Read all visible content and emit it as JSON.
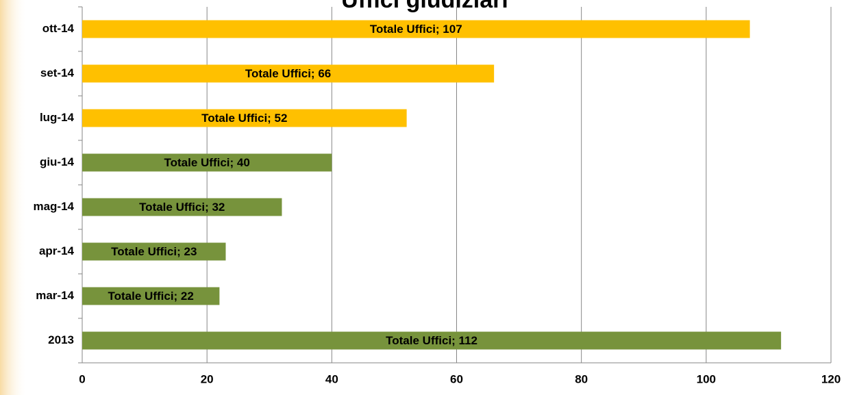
{
  "chart_data": {
    "type": "bar",
    "orientation": "horizontal",
    "title": "Uffici giudiziari",
    "categories": [
      "ott-14",
      "set-14",
      "lug-14",
      "giu-14",
      "mag-14",
      "apr-14",
      "mar-14",
      "2013"
    ],
    "values": [
      107,
      66,
      52,
      40,
      32,
      23,
      22,
      112
    ],
    "value_labels": [
      "Totale Uffici; 107",
      "Totale Uffici; 66",
      "Totale Uffici; 52",
      "Totale Uffici; 40",
      "Totale Uffici; 32",
      "Totale Uffici; 23",
      "Totale Uffici; 22",
      "Totale Uffici; 112"
    ],
    "colors": [
      "#ffc000",
      "#ffc000",
      "#ffc000",
      "#77933c",
      "#77933c",
      "#77933c",
      "#77933c",
      "#77933c"
    ],
    "xlim": [
      0,
      120
    ],
    "xticks": [
      0,
      20,
      40,
      60,
      80,
      100,
      120
    ],
    "grid": true
  }
}
